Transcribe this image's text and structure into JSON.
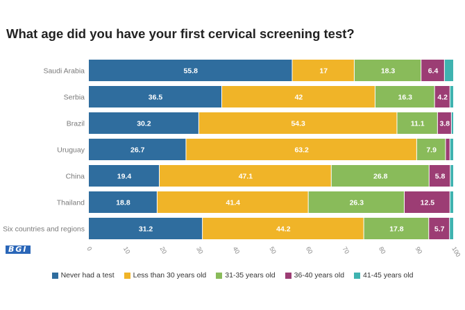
{
  "logo_text": "BGI",
  "chart_data": {
    "type": "bar",
    "orientation": "horizontal",
    "stacked": true,
    "title": "What age did you have your first cervical screening test?",
    "categories": [
      "Saudi Arabia",
      "Serbia",
      "Brazil",
      "Uruguay",
      "China",
      "Thailand",
      "Six countries and regions"
    ],
    "series": [
      {
        "name": "Never had a test",
        "color": "#2f6d9e",
        "values": [
          55.8,
          36.5,
          30.2,
          26.7,
          19.4,
          18.8,
          31.2
        ],
        "labels": [
          "55.8",
          "36.5",
          "30.2",
          "26.7",
          "19.4",
          "18.8",
          "31.2"
        ]
      },
      {
        "name": "Less than 30 years old",
        "color": "#f0b428",
        "values": [
          17,
          42,
          54.3,
          63.2,
          47.1,
          41.4,
          44.2
        ],
        "labels": [
          "17",
          "42",
          "54.3",
          "63.2",
          "47.1",
          "41.4",
          "44.2"
        ]
      },
      {
        "name": "31-35 years old",
        "color": "#89bb5a",
        "values": [
          18.3,
          16.3,
          11.1,
          7.9,
          26.8,
          26.3,
          17.8
        ],
        "labels": [
          "18.3",
          "16.3",
          "11.1",
          "7.9",
          "26.8",
          "26.3",
          "17.8"
        ]
      },
      {
        "name": "36-40 years old",
        "color": "#9c3d74",
        "values": [
          6.4,
          4.2,
          3.8,
          1.2,
          5.8,
          12.5,
          5.7
        ],
        "labels": [
          "6.4",
          "4.2",
          "3.8",
          "",
          "5.8",
          "12.5",
          "5.7"
        ]
      },
      {
        "name": "41-45 years old",
        "color": "#3fb3b0",
        "values": [
          2.5,
          1.0,
          0.6,
          1.0,
          0.9,
          1.0,
          1.1
        ],
        "labels": [
          "",
          "",
          "",
          "",
          "",
          "",
          ""
        ]
      }
    ],
    "xlim": [
      0,
      100
    ],
    "xticks": [
      "0",
      "10",
      "20",
      "30",
      "40",
      "50",
      "60",
      "70",
      "80",
      "90",
      "100"
    ],
    "xlabel": "",
    "ylabel": "",
    "grid": false,
    "legend_position": "bottom"
  }
}
